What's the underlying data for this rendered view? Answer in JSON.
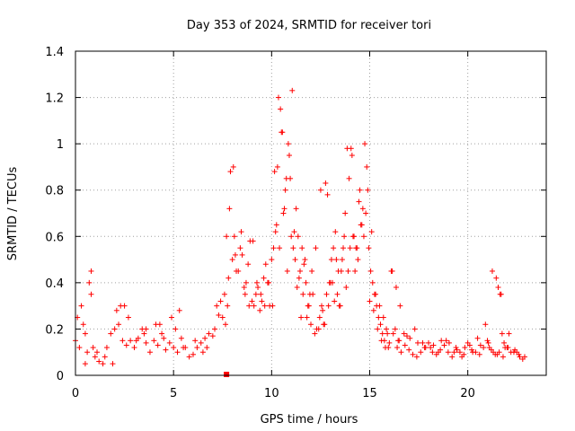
{
  "chart_data": {
    "type": "scatter",
    "title": "Day 353 of 2024, SRMTID for receiver tori",
    "xlabel": "GPS time / hours",
    "ylabel": "SRMTID / TECUs",
    "xlim": [
      0,
      24
    ],
    "ylim": [
      0,
      1.4
    ],
    "xticks": [
      0,
      5,
      10,
      15,
      20
    ],
    "xtick_labels": [
      "0",
      "5",
      "10",
      "15",
      "20"
    ],
    "yticks": [
      0,
      0.2,
      0.4,
      0.6,
      0.8,
      1.0,
      1.2,
      1.4
    ],
    "ytick_labels": [
      "0",
      "0.2",
      "0.4",
      "0.6",
      "0.8",
      "1",
      "1.2",
      "1.4"
    ],
    "grid": true,
    "marker": "+",
    "color": "#ff0000",
    "series": [
      {
        "name": "SRMTID",
        "x": [
          0.0,
          0.2,
          0.4,
          0.6,
          0.8,
          1.0,
          1.2,
          1.4,
          1.6,
          1.8,
          2.0,
          2.2,
          2.4,
          2.6,
          2.8,
          3.0,
          3.2,
          3.4,
          3.6,
          3.8,
          4.0,
          4.2,
          4.4,
          4.6,
          4.8,
          5.0,
          5.2,
          5.4,
          5.6,
          5.8,
          6.0,
          6.2,
          6.4,
          6.6,
          6.8,
          7.0,
          7.2,
          7.4,
          7.6,
          7.8,
          8.0,
          8.2,
          8.4,
          8.6,
          8.8,
          9.0,
          9.2,
          9.4,
          9.6,
          9.8,
          10.0,
          10.2,
          10.4,
          10.6,
          10.8,
          11.0,
          11.2,
          11.4,
          11.6,
          11.8,
          12.0,
          12.2,
          12.4,
          12.6,
          12.8,
          13.0,
          13.2,
          13.4,
          13.6,
          13.8,
          14.0,
          14.2,
          14.4,
          14.6,
          14.8,
          15.0,
          15.2,
          15.4,
          15.6,
          15.8,
          16.0,
          16.2,
          16.4,
          16.6,
          16.8,
          17.0,
          17.2,
          17.4,
          17.6,
          17.8,
          18.0,
          18.2,
          18.4,
          18.6,
          18.8,
          19.0,
          19.2,
          19.4,
          19.6,
          19.8,
          20.0,
          20.2,
          20.4,
          20.6,
          20.8,
          21.0,
          21.2,
          21.4,
          21.6,
          21.8,
          22.0,
          22.2,
          22.4,
          22.6,
          22.8,
          0.1,
          0.3,
          0.5,
          0.7,
          0.9,
          1.1,
          1.5,
          2.1,
          2.5,
          3.1,
          3.5,
          4.1,
          4.5,
          5.1,
          5.5,
          6.1,
          6.5,
          7.1,
          7.5,
          7.7,
          7.9,
          8.1,
          8.3,
          8.5,
          8.7,
          8.9,
          9.1,
          9.3,
          9.5,
          9.7,
          9.9,
          10.1,
          10.3,
          10.5,
          10.7,
          10.9,
          11.1,
          11.3,
          11.5,
          11.7,
          11.9,
          12.1,
          12.3,
          12.5,
          12.7,
          12.9,
          13.1,
          13.3,
          13.5,
          13.7,
          13.9,
          14.1,
          14.3,
          14.5,
          14.7,
          14.9,
          15.1,
          15.3,
          15.5,
          15.7,
          15.9,
          16.1,
          16.3,
          16.5,
          16.9,
          17.3,
          17.7,
          18.1,
          18.5,
          18.9,
          19.3,
          19.7,
          20.1,
          20.5,
          20.9,
          21.1,
          21.3,
          21.5,
          21.7,
          21.9,
          22.1,
          22.5,
          22.9,
          0.5,
          0.8,
          1.9,
          2.3,
          2.7,
          3.6,
          4.3,
          4.9,
          5.3,
          6.7,
          7.3,
          7.65,
          7.75,
          7.85,
          8.05,
          8.15,
          8.45,
          8.65,
          8.85,
          9.05,
          9.25,
          9.45,
          9.65,
          9.85,
          10.05,
          10.15,
          10.25,
          10.35,
          10.45,
          10.55,
          10.65,
          10.75,
          10.85,
          10.95,
          11.05,
          11.15,
          11.25,
          11.35,
          11.45,
          11.55,
          11.65,
          11.75,
          11.85,
          11.95,
          12.05,
          12.25,
          12.45,
          12.55,
          12.65,
          12.75,
          12.85,
          12.95,
          13.05,
          13.15,
          13.25,
          13.35,
          13.45,
          13.55,
          13.65,
          13.75,
          13.85,
          13.95,
          14.05,
          14.15,
          14.25,
          14.35,
          14.45,
          14.55,
          14.65,
          14.75,
          14.85,
          14.95,
          15.05,
          15.15,
          15.25,
          15.35,
          15.45,
          15.55,
          15.65,
          15.75,
          15.85,
          15.95,
          16.15,
          16.35,
          16.45,
          16.55,
          16.75,
          17.05,
          17.45,
          17.85,
          18.25,
          18.65,
          19.05,
          19.45,
          19.85,
          20.25,
          20.65,
          21.05,
          21.25,
          21.45,
          21.55,
          21.65,
          21.75,
          21.85,
          22.05,
          22.35,
          22.65
        ],
        "y": [
          0.15,
          0.12,
          0.22,
          0.1,
          0.35,
          0.08,
          0.06,
          0.05,
          0.12,
          0.18,
          0.2,
          0.22,
          0.15,
          0.13,
          0.15,
          0.12,
          0.16,
          0.2,
          0.14,
          0.1,
          0.15,
          0.13,
          0.18,
          0.11,
          0.14,
          0.12,
          0.1,
          0.16,
          0.12,
          0.08,
          0.09,
          0.12,
          0.14,
          0.16,
          0.18,
          0.17,
          0.3,
          0.32,
          0.35,
          0.42,
          0.5,
          0.45,
          0.55,
          0.38,
          0.48,
          0.32,
          0.35,
          0.28,
          0.42,
          0.4,
          0.5,
          0.62,
          0.55,
          0.7,
          0.45,
          0.6,
          0.5,
          0.42,
          0.35,
          0.25,
          0.22,
          0.18,
          0.2,
          0.28,
          0.35,
          0.4,
          0.32,
          0.45,
          0.5,
          0.38,
          0.55,
          0.6,
          0.5,
          0.65,
          0.7,
          0.32,
          0.28,
          0.2,
          0.15,
          0.12,
          0.14,
          0.18,
          0.12,
          0.1,
          0.13,
          0.11,
          0.09,
          0.08,
          0.1,
          0.12,
          0.14,
          0.1,
          0.09,
          0.11,
          0.13,
          0.1,
          0.08,
          0.12,
          0.1,
          0.09,
          0.14,
          0.11,
          0.1,
          0.09,
          0.12,
          0.15,
          0.11,
          0.09,
          0.1,
          0.08,
          0.12,
          0.1,
          0.11,
          0.09,
          0.07,
          0.25,
          0.3,
          0.18,
          0.4,
          0.12,
          0.1,
          0.08,
          0.28,
          0.3,
          0.15,
          0.18,
          0.22,
          0.16,
          0.2,
          0.12,
          0.15,
          0.1,
          0.2,
          0.25,
          0.6,
          0.88,
          0.6,
          0.45,
          0.52,
          0.4,
          0.58,
          0.3,
          0.38,
          0.32,
          0.48,
          0.3,
          0.55,
          0.9,
          1.05,
          0.8,
          0.95,
          0.55,
          0.38,
          0.25,
          0.5,
          0.3,
          0.35,
          0.2,
          0.8,
          0.22,
          0.3,
          0.4,
          0.5,
          0.3,
          0.6,
          0.45,
          0.95,
          0.55,
          0.8,
          0.6,
          0.8,
          0.62,
          0.35,
          0.3,
          0.25,
          0.18,
          0.45,
          0.2,
          0.15,
          0.17,
          0.2,
          0.14,
          0.12,
          0.1,
          0.15,
          0.1,
          0.08,
          0.13,
          0.16,
          0.22,
          0.12,
          0.1,
          0.09,
          0.35,
          0.12,
          0.18,
          0.1,
          0.08,
          0.05,
          0.45,
          0.05,
          0.3,
          0.25,
          0.2,
          0.22,
          0.25,
          0.28,
          0.12,
          0.26,
          0.22,
          0.3,
          0.72,
          0.9,
          0.52,
          0.62,
          0.35,
          0.3,
          0.58,
          0.4,
          0.35,
          0.3,
          0.4,
          0.3,
          0.88,
          0.65,
          1.2,
          1.15,
          1.05,
          0.72,
          0.85,
          1.0,
          0.85,
          1.23,
          0.62,
          0.72,
          0.6,
          0.45,
          0.55,
          0.48,
          0.4,
          0.3,
          0.35,
          0.45,
          0.55,
          0.25,
          0.3,
          0.22,
          0.83,
          0.78,
          0.4,
          0.5,
          0.55,
          0.62,
          0.35,
          0.3,
          0.45,
          0.55,
          0.7,
          0.98,
          0.85,
          0.98,
          0.6,
          0.45,
          0.55,
          0.75,
          0.65,
          0.72,
          1.0,
          0.9,
          0.55,
          0.45,
          0.4,
          0.35,
          0.3,
          0.25,
          0.22,
          0.18,
          0.15,
          0.2,
          0.12,
          0.45,
          0.38,
          0.15,
          0.3,
          0.18,
          0.16,
          0.14,
          0.12,
          0.13,
          0.15,
          0.14,
          0.11,
          0.12,
          0.1,
          0.13,
          0.14,
          0.45,
          0.42,
          0.38,
          0.35,
          0.18,
          0.14,
          0.12,
          0.1,
          0.08
        ]
      }
    ],
    "annotations": [
      {
        "x": 7.7,
        "y": 0.0,
        "text": ""
      }
    ]
  }
}
